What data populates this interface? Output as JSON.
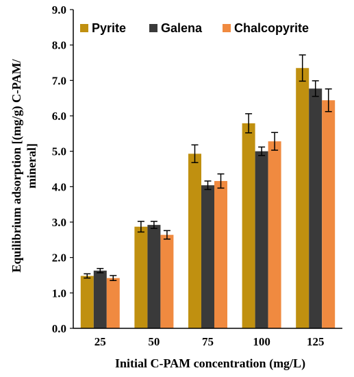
{
  "chart_data": {
    "type": "bar",
    "categories": [
      "25",
      "50",
      "75",
      "100",
      "125"
    ],
    "series": [
      {
        "name": "Pyrite",
        "color": "#c09010",
        "values": [
          1.48,
          2.87,
          4.93,
          5.79,
          7.35
        ],
        "errors": [
          0.06,
          0.15,
          0.25,
          0.27,
          0.37
        ]
      },
      {
        "name": "Galena",
        "color": "#3a3a3a",
        "values": [
          1.63,
          2.92,
          4.04,
          5.0,
          6.77
        ],
        "errors": [
          0.06,
          0.1,
          0.12,
          0.12,
          0.22
        ]
      },
      {
        "name": "Chalcopyrite",
        "color": "#f08a40",
        "values": [
          1.42,
          2.64,
          4.16,
          5.28,
          6.44
        ],
        "errors": [
          0.07,
          0.12,
          0.2,
          0.25,
          0.32
        ]
      }
    ],
    "yticks": [
      "0.0",
      "1.0",
      "2.0",
      "3.0",
      "4.0",
      "5.0",
      "6.0",
      "7.0",
      "8.0",
      "9.0"
    ],
    "ylim": [
      0,
      9
    ],
    "xlabel": "Initial  C-PAM concentration  (mg/L)",
    "ylabel_line1": "Equilibrium  adsorption [(mg/g) C-PAM/",
    "ylabel_line2": "mineral]",
    "legend_position": "top",
    "grid": false
  }
}
